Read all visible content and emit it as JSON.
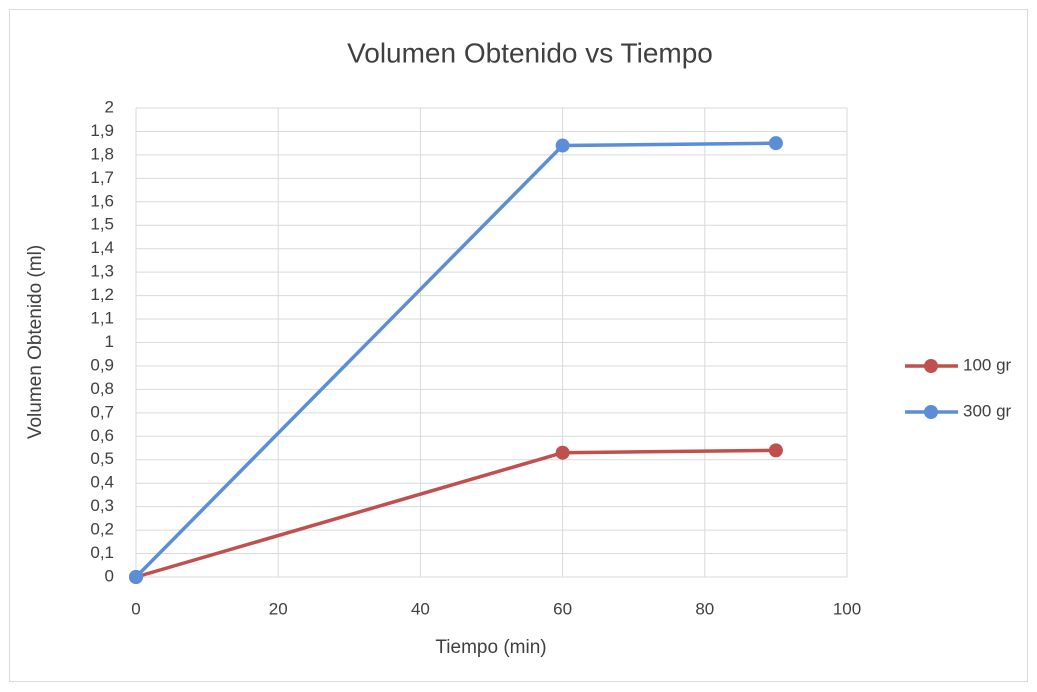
{
  "chart_data": {
    "type": "line",
    "title": "Volumen Obtenido vs Tiempo",
    "xlabel": "Tiempo (min)",
    "ylabel": "Volumen Obtenido (ml)",
    "x": [
      0,
      60,
      90
    ],
    "series": [
      {
        "name": "100 gr",
        "color": "#c0504d",
        "values": [
          0,
          0.53,
          0.54
        ]
      },
      {
        "name": "300 gr",
        "color": "#5b8ed6",
        "values": [
          0,
          1.84,
          1.85
        ]
      }
    ],
    "xlim": [
      0,
      100
    ],
    "xticks": [
      0,
      20,
      40,
      60,
      80,
      100
    ],
    "ylim": [
      0,
      2
    ],
    "yticks": [
      0,
      {
        "value": 0.1,
        "label": "0,1"
      },
      {
        "value": 0.2,
        "label": "0,2"
      },
      {
        "value": 0.3,
        "label": "0,3"
      },
      {
        "value": 0.4,
        "label": "0,4"
      },
      {
        "value": 0.5,
        "label": "0,5"
      },
      {
        "value": 0.6,
        "label": "0,6"
      },
      {
        "value": 0.7,
        "label": "0,7"
      },
      {
        "value": 0.8,
        "label": "0,8"
      },
      {
        "value": 0.9,
        "label": "0,9"
      },
      1,
      {
        "value": 1.1,
        "label": "1,1"
      },
      {
        "value": 1.2,
        "label": "1,2"
      },
      {
        "value": 1.3,
        "label": "1,3"
      },
      {
        "value": 1.4,
        "label": "1,4"
      },
      {
        "value": 1.5,
        "label": "1,5"
      },
      {
        "value": 1.6,
        "label": "1,6"
      },
      {
        "value": 1.7,
        "label": "1,7"
      },
      {
        "value": 1.8,
        "label": "1,8"
      },
      {
        "value": 1.9,
        "label": "1,9"
      },
      2
    ],
    "grid": true,
    "legend": "right"
  }
}
